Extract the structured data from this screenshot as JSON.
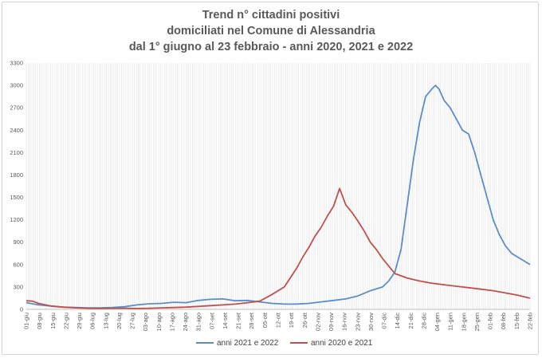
{
  "chart_data": {
    "type": "line",
    "title_lines": [
      "Trend n° cittadini positivi",
      "domiciliati nel Comune di Alessandria",
      "dal 1° giugno al 23 febbraio - anni 2020, 2021 e 2022"
    ],
    "xlabel": "",
    "ylabel": "",
    "ylim": [
      0,
      3300
    ],
    "y_ticks": [
      0,
      300,
      600,
      900,
      1200,
      1500,
      1800,
      2100,
      2400,
      2700,
      3000,
      3300
    ],
    "x_categories": [
      "01-giu",
      "08-giu",
      "15-giu",
      "22-giu",
      "29-giu",
      "06-lug",
      "13-lug",
      "20-lug",
      "27-lug",
      "03-ago",
      "10-ago",
      "17-ago",
      "24-ago",
      "31-ago",
      "07-set",
      "14-set",
      "21-set",
      "28-set",
      "05-ott",
      "12-ott",
      "19-ott",
      "26-ott",
      "02-nov",
      "09-nov",
      "16-nov",
      "23-nov",
      "30-nov",
      "07-dic",
      "14-dic",
      "21-dic",
      "28-dic",
      "04-gen",
      "11-gen",
      "18-gen",
      "25-gen",
      "01-feb",
      "08-feb",
      "15-feb",
      "22-feb"
    ],
    "grid": "vertical-lines",
    "legend_position": "bottom",
    "series": [
      {
        "name": "anni 2021 e 2022",
        "color": "#5b8ec8",
        "points": [
          [
            0,
            90
          ],
          [
            1,
            60
          ],
          [
            2,
            45
          ],
          [
            3,
            30
          ],
          [
            4,
            25
          ],
          [
            5,
            20
          ],
          [
            6,
            20
          ],
          [
            7,
            25
          ],
          [
            8,
            35
          ],
          [
            9,
            60
          ],
          [
            10,
            75
          ],
          [
            11,
            80
          ],
          [
            12,
            95
          ],
          [
            13,
            90
          ],
          [
            14,
            120
          ],
          [
            15,
            135
          ],
          [
            16,
            140
          ],
          [
            17,
            115
          ],
          [
            18,
            120
          ],
          [
            19,
            100
          ],
          [
            20,
            80
          ],
          [
            21,
            70
          ],
          [
            22,
            70
          ],
          [
            23,
            80
          ],
          [
            24,
            100
          ],
          [
            25,
            120
          ],
          [
            26,
            140
          ],
          [
            27,
            180
          ],
          [
            28,
            250
          ],
          [
            29,
            300
          ],
          [
            29.5,
            380
          ],
          [
            30,
            500
          ],
          [
            30.5,
            800
          ],
          [
            31,
            1400
          ],
          [
            31.5,
            2000
          ],
          [
            32,
            2500
          ],
          [
            32.5,
            2850
          ],
          [
            33,
            2950
          ],
          [
            33.3,
            3000
          ],
          [
            33.6,
            2950
          ],
          [
            34,
            2800
          ],
          [
            34.5,
            2700
          ],
          [
            35,
            2550
          ],
          [
            35.5,
            2400
          ],
          [
            36,
            2350
          ],
          [
            36.5,
            2100
          ],
          [
            37,
            1800
          ],
          [
            37.5,
            1500
          ],
          [
            38,
            1200
          ],
          [
            38.5,
            1000
          ],
          [
            39,
            850
          ],
          [
            39.5,
            750
          ],
          [
            40,
            700
          ],
          [
            40.5,
            650
          ],
          [
            41,
            600
          ]
        ]
      },
      {
        "name": "anni 2020 e 2021",
        "color": "#c0504d",
        "points": [
          [
            0,
            115
          ],
          [
            0.5,
            110
          ],
          [
            1,
            80
          ],
          [
            2,
            45
          ],
          [
            3,
            30
          ],
          [
            4,
            20
          ],
          [
            5,
            15
          ],
          [
            6,
            12
          ],
          [
            7,
            15
          ],
          [
            8,
            15
          ],
          [
            9,
            12
          ],
          [
            10,
            15
          ],
          [
            11,
            20
          ],
          [
            12,
            25
          ],
          [
            13,
            30
          ],
          [
            14,
            40
          ],
          [
            15,
            50
          ],
          [
            16,
            60
          ],
          [
            17,
            70
          ],
          [
            18,
            90
          ],
          [
            19,
            110
          ],
          [
            20,
            200
          ],
          [
            21,
            300
          ],
          [
            22,
            550
          ],
          [
            22.5,
            700
          ],
          [
            23,
            830
          ],
          [
            23.5,
            980
          ],
          [
            24,
            1100
          ],
          [
            24.5,
            1250
          ],
          [
            25,
            1380
          ],
          [
            25.5,
            1620
          ],
          [
            26,
            1400
          ],
          [
            26.5,
            1300
          ],
          [
            27,
            1180
          ],
          [
            27.5,
            1050
          ],
          [
            28,
            900
          ],
          [
            28.5,
            800
          ],
          [
            29,
            680
          ],
          [
            29.5,
            580
          ],
          [
            30,
            480
          ],
          [
            31,
            420
          ],
          [
            32,
            380
          ],
          [
            33,
            350
          ],
          [
            34,
            330
          ],
          [
            35,
            310
          ],
          [
            36,
            290
          ],
          [
            37,
            270
          ],
          [
            38,
            250
          ],
          [
            39,
            220
          ],
          [
            40,
            190
          ],
          [
            41,
            150
          ]
        ]
      }
    ]
  }
}
